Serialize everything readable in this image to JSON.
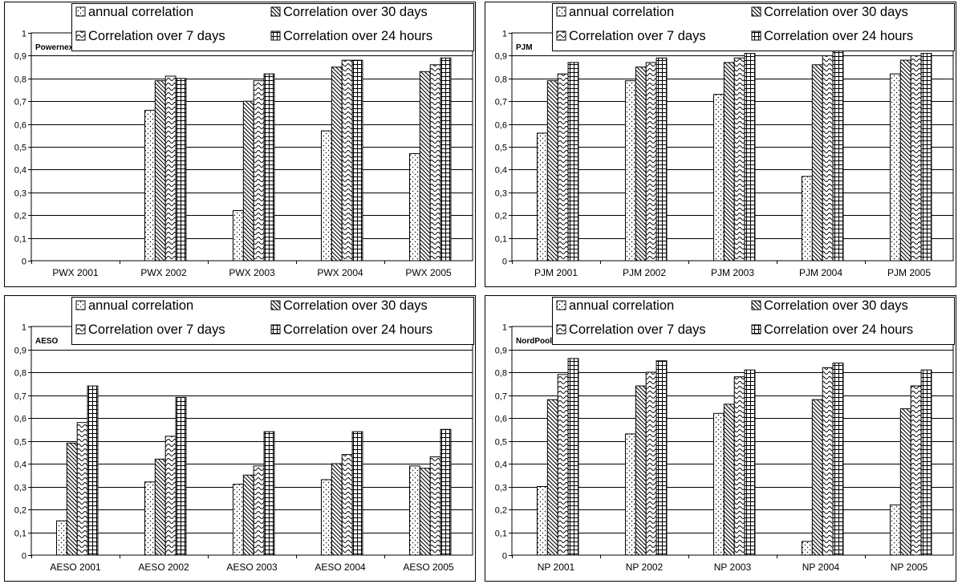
{
  "legend": {
    "annual": "annual correlation",
    "d30": "Correlation over 30 days",
    "d7": "Correlation over 7 days",
    "h24": "Correlation over 24 hours"
  },
  "chart_data": [
    {
      "type": "bar",
      "title": "Powernext",
      "categories": [
        "PWX 2001",
        "PWX 2002",
        "PWX 2003",
        "PWX 2004",
        "PWX 2005"
      ],
      "ylim": [
        0,
        1
      ],
      "yticks": [
        "0",
        "0,1",
        "0,2",
        "0,3",
        "0,4",
        "0,5",
        "0,6",
        "0,7",
        "0,8",
        "0,9",
        "1"
      ],
      "grid": true,
      "legend_position": "top-right",
      "series": [
        {
          "name": "annual correlation",
          "values": [
            null,
            0.66,
            0.22,
            0.57,
            0.47
          ]
        },
        {
          "name": "Correlation over 30 days",
          "values": [
            null,
            0.79,
            0.7,
            0.85,
            0.83
          ]
        },
        {
          "name": "Correlation over 7 days",
          "values": [
            null,
            0.81,
            0.79,
            0.88,
            0.86
          ]
        },
        {
          "name": "Correlation over 24 hours",
          "values": [
            null,
            0.8,
            0.82,
            0.88,
            0.89
          ]
        }
      ]
    },
    {
      "type": "bar",
      "title": "PJM",
      "categories": [
        "PJM 2001",
        "PJM 2002",
        "PJM 2003",
        "PJM 2004",
        "PJM 2005"
      ],
      "ylim": [
        0,
        1
      ],
      "yticks": [
        "0",
        "0,1",
        "0,2",
        "0,3",
        "0,4",
        "0,5",
        "0,6",
        "0,7",
        "0,8",
        "0,9",
        "1"
      ],
      "grid": true,
      "legend_position": "top-right",
      "series": [
        {
          "name": "annual correlation",
          "values": [
            0.56,
            0.79,
            0.73,
            0.37,
            0.82
          ]
        },
        {
          "name": "Correlation over 30 days",
          "values": [
            0.79,
            0.85,
            0.87,
            0.86,
            0.88
          ]
        },
        {
          "name": "Correlation over 7 days",
          "values": [
            0.82,
            0.87,
            0.89,
            0.9,
            0.9
          ]
        },
        {
          "name": "Correlation over 24 hours",
          "values": [
            0.87,
            0.89,
            0.91,
            0.93,
            0.91
          ]
        }
      ]
    },
    {
      "type": "bar",
      "title": "AESO",
      "categories": [
        "AESO 2001",
        "AESO 2002",
        "AESO 2003",
        "AESO 2004",
        "AESO 2005"
      ],
      "ylim": [
        0,
        1
      ],
      "yticks": [
        "0",
        "0,1",
        "0,2",
        "0,3",
        "0,4",
        "0,5",
        "0,6",
        "0,7",
        "0,8",
        "0,9",
        "1"
      ],
      "grid": true,
      "legend_position": "top-right",
      "series": [
        {
          "name": "annual correlation",
          "values": [
            0.15,
            0.32,
            0.31,
            0.33,
            0.39
          ]
        },
        {
          "name": "Correlation over 30 days",
          "values": [
            0.49,
            0.42,
            0.35,
            0.4,
            0.38
          ]
        },
        {
          "name": "Correlation over 7 days",
          "values": [
            0.58,
            0.52,
            0.39,
            0.44,
            0.43
          ]
        },
        {
          "name": "Correlation over 24 hours",
          "values": [
            0.74,
            0.69,
            0.54,
            0.54,
            0.55
          ]
        }
      ]
    },
    {
      "type": "bar",
      "title": "NordPool",
      "categories": [
        "NP 2001",
        "NP 2002",
        "NP 2003",
        "NP 2004",
        "NP 2005"
      ],
      "ylim": [
        0,
        1
      ],
      "yticks": [
        "0",
        "0,1",
        "0,2",
        "0,3",
        "0,4",
        "0,5",
        "0,6",
        "0,7",
        "0,8",
        "0,9",
        "1"
      ],
      "grid": true,
      "legend_position": "top-right",
      "series": [
        {
          "name": "annual correlation",
          "values": [
            0.3,
            0.53,
            0.62,
            0.06,
            0.22
          ]
        },
        {
          "name": "Correlation over 30 days",
          "values": [
            0.68,
            0.74,
            0.66,
            0.68,
            0.64
          ]
        },
        {
          "name": "Correlation over 7 days",
          "values": [
            0.79,
            0.8,
            0.78,
            0.82,
            0.74
          ]
        },
        {
          "name": "Correlation over 24 hours",
          "values": [
            0.86,
            0.85,
            0.81,
            0.84,
            0.81
          ]
        }
      ]
    }
  ]
}
